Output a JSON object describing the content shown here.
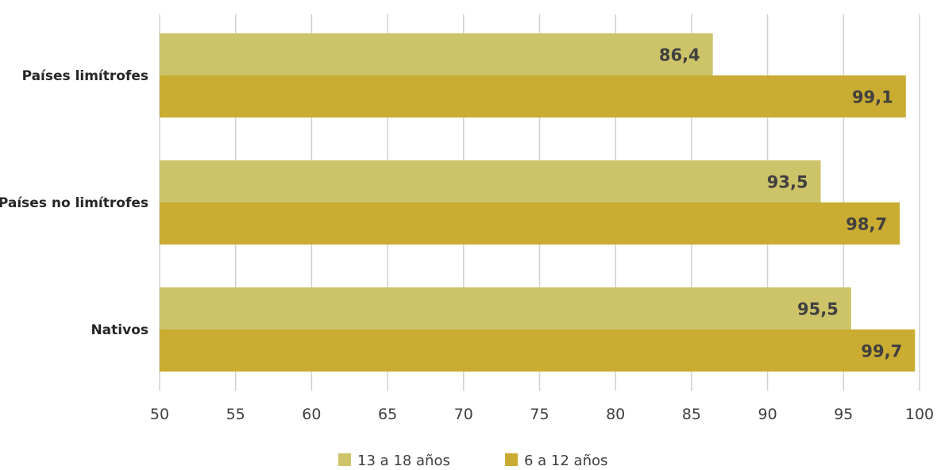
{
  "chart_data": {
    "type": "bar",
    "orientation": "horizontal",
    "title": "",
    "xlabel": "",
    "ylabel": "",
    "categories": [
      "Países limítrofes",
      "Países no limítrofes",
      "Nativos"
    ],
    "series": [
      {
        "name": "13 a 18 años",
        "color": "#cdc46a",
        "values": [
          86.4,
          93.5,
          95.5
        ],
        "labels": [
          "86,4",
          "93,5",
          "95,5"
        ]
      },
      {
        "name": "6 a 12 años",
        "color": "#c9ac31",
        "values": [
          99.1,
          98.7,
          99.7
        ],
        "labels": [
          "99,1",
          "98,7",
          "99,7"
        ]
      }
    ],
    "xlim": [
      50,
      100
    ],
    "xticks": [
      50,
      55,
      60,
      65,
      70,
      75,
      80,
      85,
      90,
      95,
      100
    ],
    "grid": true,
    "legend_position": "bottom"
  }
}
